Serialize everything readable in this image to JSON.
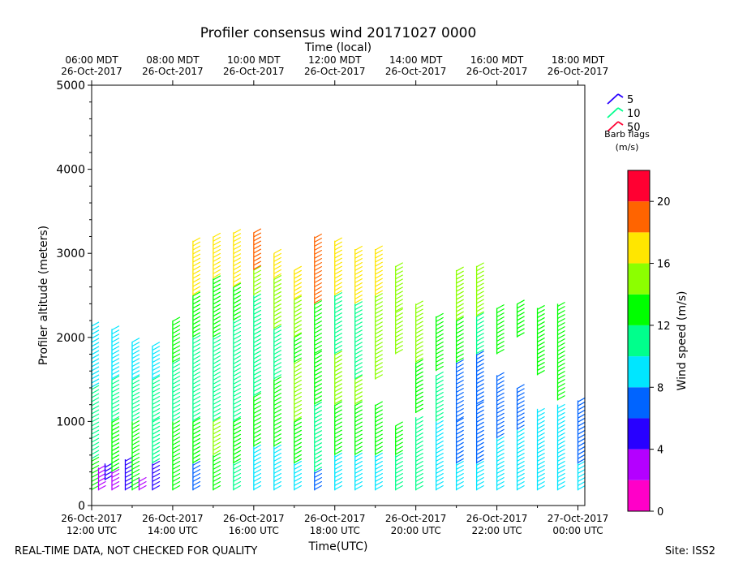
{
  "chart_data": {
    "type": "wind-profile",
    "title": "Profiler consensus wind 20171027 0000",
    "top_axis_label": "Time (local)",
    "bottom_axis_label": "Time(UTC)",
    "y_axis_label": "Profiler altitude (meters)",
    "ylim": [
      0,
      5000
    ],
    "y_ticks": [
      0,
      1000,
      2000,
      3000,
      4000,
      5000
    ],
    "xlim_utc_hours": [
      12.0,
      24.17
    ],
    "bottom_ticks": [
      {
        "utc_hour": 12,
        "line1": "26-Oct-2017",
        "line2": "12:00 UTC"
      },
      {
        "utc_hour": 14,
        "line1": "26-Oct-2017",
        "line2": "14:00 UTC"
      },
      {
        "utc_hour": 16,
        "line1": "26-Oct-2017",
        "line2": "16:00 UTC"
      },
      {
        "utc_hour": 18,
        "line1": "26-Oct-2017",
        "line2": "18:00 UTC"
      },
      {
        "utc_hour": 20,
        "line1": "26-Oct-2017",
        "line2": "20:00 UTC"
      },
      {
        "utc_hour": 22,
        "line1": "26-Oct-2017",
        "line2": "22:00 UTC"
      },
      {
        "utc_hour": 24,
        "line1": "27-Oct-2017",
        "line2": "00:00 UTC"
      }
    ],
    "top_ticks": [
      {
        "utc_hour": 12,
        "line1": "06:00 MDT",
        "line2": "26-Oct-2017"
      },
      {
        "utc_hour": 14,
        "line1": "08:00 MDT",
        "line2": "26-Oct-2017"
      },
      {
        "utc_hour": 16,
        "line1": "10:00 MDT",
        "line2": "26-Oct-2017"
      },
      {
        "utc_hour": 18,
        "line1": "12:00 MDT",
        "line2": "26-Oct-2017"
      },
      {
        "utc_hour": 20,
        "line1": "14:00 MDT",
        "line2": "26-Oct-2017"
      },
      {
        "utc_hour": 22,
        "line1": "16:00 MDT",
        "line2": "26-Oct-2017"
      },
      {
        "utc_hour": 24,
        "line1": "18:00 MDT",
        "line2": "26-Oct-2017"
      }
    ],
    "colorbar": {
      "label": "Wind speed (m/s)",
      "ticks": [
        0,
        4,
        8,
        12,
        16,
        20
      ],
      "bins": [
        {
          "min": 0,
          "max": 2,
          "color": "#ff00c8"
        },
        {
          "min": 2,
          "max": 4,
          "color": "#b400ff"
        },
        {
          "min": 4,
          "max": 6,
          "color": "#2800ff"
        },
        {
          "min": 6,
          "max": 8,
          "color": "#0064ff"
        },
        {
          "min": 8,
          "max": 10,
          "color": "#00e6ff"
        },
        {
          "min": 10,
          "max": 12,
          "color": "#00ff8c"
        },
        {
          "min": 12,
          "max": 14,
          "color": "#00ff00"
        },
        {
          "min": 14,
          "max": 16,
          "color": "#8cff00"
        },
        {
          "min": 16,
          "max": 18,
          "color": "#ffe600"
        },
        {
          "min": 18,
          "max": 20,
          "color": "#ff6400"
        },
        {
          "min": 20,
          "max": 22,
          "color": "#ff0032"
        }
      ]
    },
    "barb_legend": {
      "items": [
        {
          "label": "5",
          "color": "#2800ff"
        },
        {
          "label": "10",
          "color": "#00ff8c"
        },
        {
          "label": "50",
          "color": "#ff0032"
        }
      ],
      "title_line1": "Barb flags",
      "title_line2": "(m/s)"
    },
    "profiles": [
      {
        "utc_hour": 12.0,
        "segments": [
          [
            180,
            550,
            12.5
          ],
          [
            550,
            1400,
            11
          ],
          [
            1400,
            2180,
            9
          ]
        ]
      },
      {
        "utc_hour": 12.17,
        "segments": [
          [
            180,
            450,
            3
          ]
        ]
      },
      {
        "utc_hour": 12.33,
        "segments": [
          [
            300,
            500,
            4
          ]
        ]
      },
      {
        "utc_hour": 12.5,
        "segments": [
          [
            180,
            400,
            3
          ],
          [
            400,
            1000,
            12.5
          ],
          [
            1000,
            1500,
            11
          ],
          [
            1500,
            2100,
            9
          ]
        ]
      },
      {
        "utc_hour": 12.83,
        "segments": [
          [
            180,
            550,
            4
          ]
        ]
      },
      {
        "utc_hour": 13.0,
        "segments": [
          [
            180,
            1000,
            12.5
          ],
          [
            1000,
            1500,
            11
          ],
          [
            1500,
            1950,
            9
          ]
        ]
      },
      {
        "utc_hour": 13.17,
        "segments": [
          [
            180,
            330,
            3
          ]
        ]
      },
      {
        "utc_hour": 13.5,
        "segments": [
          [
            180,
            500,
            4
          ],
          [
            500,
            1000,
            11
          ],
          [
            1000,
            1500,
            10
          ],
          [
            1500,
            1900,
            9
          ]
        ]
      },
      {
        "utc_hour": 14.0,
        "segments": [
          [
            180,
            1000,
            12.5
          ],
          [
            1000,
            1700,
            11
          ],
          [
            1700,
            2200,
            12.5
          ]
        ]
      },
      {
        "utc_hour": 14.5,
        "segments": [
          [
            180,
            500,
            7
          ],
          [
            500,
            1000,
            12.5
          ],
          [
            1000,
            2000,
            11
          ],
          [
            2000,
            2500,
            12.5
          ],
          [
            2500,
            3150,
            17
          ]
        ]
      },
      {
        "utc_hour": 15.0,
        "segments": [
          [
            180,
            600,
            12.5
          ],
          [
            600,
            1000,
            15
          ],
          [
            1000,
            2000,
            11
          ],
          [
            2000,
            2700,
            12.5
          ],
          [
            2700,
            3200,
            17
          ]
        ]
      },
      {
        "utc_hour": 15.5,
        "segments": [
          [
            180,
            500,
            11
          ],
          [
            500,
            1000,
            12.5
          ],
          [
            1000,
            2200,
            10
          ],
          [
            2200,
            2600,
            12.5
          ],
          [
            2600,
            3250,
            17
          ]
        ]
      },
      {
        "utc_hour": 16.0,
        "segments": [
          [
            180,
            700,
            9
          ],
          [
            700,
            1300,
            12.5
          ],
          [
            1300,
            2500,
            11
          ],
          [
            2500,
            2800,
            15
          ],
          [
            2800,
            3250,
            18.5
          ]
        ]
      },
      {
        "utc_hour": 16.5,
        "segments": [
          [
            180,
            700,
            9
          ],
          [
            700,
            1500,
            12.5
          ],
          [
            1500,
            2100,
            11
          ],
          [
            2100,
            2700,
            15
          ],
          [
            2700,
            3000,
            17
          ]
        ]
      },
      {
        "utc_hour": 17.0,
        "segments": [
          [
            180,
            500,
            9
          ],
          [
            500,
            1000,
            12.5
          ],
          [
            1000,
            1700,
            15
          ],
          [
            1700,
            2000,
            12.5
          ],
          [
            2000,
            2450,
            15
          ],
          [
            2450,
            2800,
            17
          ]
        ]
      },
      {
        "utc_hour": 17.5,
        "segments": [
          [
            180,
            400,
            7
          ],
          [
            400,
            1200,
            11
          ],
          [
            1200,
            1800,
            12.5
          ],
          [
            1800,
            2400,
            12.5
          ],
          [
            2400,
            3200,
            18.5
          ]
        ]
      },
      {
        "utc_hour": 18.0,
        "segments": [
          [
            180,
            600,
            9
          ],
          [
            600,
            1200,
            12.5
          ],
          [
            1200,
            1800,
            15
          ],
          [
            1800,
            2500,
            11
          ],
          [
            2500,
            3150,
            17
          ]
        ]
      },
      {
        "utc_hour": 18.5,
        "segments": [
          [
            180,
            600,
            9
          ],
          [
            600,
            1200,
            12.5
          ],
          [
            1200,
            1500,
            15
          ],
          [
            1500,
            2400,
            11
          ],
          [
            2400,
            3050,
            17
          ]
        ]
      },
      {
        "utc_hour": 19.0,
        "segments": [
          [
            180,
            600,
            9
          ],
          [
            600,
            1200,
            12.5
          ],
          [
            1500,
            2500,
            15
          ],
          [
            2500,
            3050,
            17
          ]
        ]
      },
      {
        "utc_hour": 19.5,
        "segments": [
          [
            180,
            600,
            11
          ],
          [
            600,
            950,
            12.5
          ],
          [
            1800,
            2300,
            15
          ],
          [
            2300,
            2850,
            15
          ]
        ]
      },
      {
        "utc_hour": 20.0,
        "segments": [
          [
            180,
            1050,
            11
          ],
          [
            1100,
            1700,
            12.5
          ],
          [
            1700,
            2400,
            15
          ]
        ]
      },
      {
        "utc_hour": 20.5,
        "segments": [
          [
            180,
            1000,
            9
          ],
          [
            1000,
            1550,
            11
          ],
          [
            1600,
            2250,
            12.5
          ]
        ]
      },
      {
        "utc_hour": 21.0,
        "segments": [
          [
            180,
            500,
            9
          ],
          [
            500,
            1000,
            7
          ],
          [
            1000,
            1700,
            6
          ],
          [
            1700,
            2200,
            12.5
          ],
          [
            2200,
            2800,
            15
          ]
        ]
      },
      {
        "utc_hour": 21.5,
        "segments": [
          [
            180,
            500,
            9
          ],
          [
            500,
            1200,
            7
          ],
          [
            1200,
            1800,
            7
          ],
          [
            1800,
            2250,
            11
          ],
          [
            2250,
            2850,
            15
          ]
        ]
      },
      {
        "utc_hour": 22.0,
        "segments": [
          [
            180,
            800,
            9
          ],
          [
            800,
            1550,
            6
          ],
          [
            1800,
            2350,
            12.5
          ]
        ]
      },
      {
        "utc_hour": 22.5,
        "segments": [
          [
            180,
            900,
            9
          ],
          [
            900,
            1400,
            7
          ],
          [
            2000,
            2400,
            12.5
          ]
        ]
      },
      {
        "utc_hour": 23.0,
        "segments": [
          [
            180,
            1150,
            9
          ],
          [
            1550,
            2350,
            12.5
          ]
        ]
      },
      {
        "utc_hour": 23.5,
        "segments": [
          [
            180,
            1200,
            9
          ],
          [
            1250,
            2400,
            12.5
          ]
        ]
      },
      {
        "utc_hour": 24.0,
        "segments": [
          [
            180,
            500,
            9
          ],
          [
            500,
            1250,
            7
          ]
        ]
      }
    ]
  },
  "footer": {
    "left": "REAL-TIME DATA, NOT CHECKED FOR QUALITY",
    "right": "Site: ISS2"
  }
}
